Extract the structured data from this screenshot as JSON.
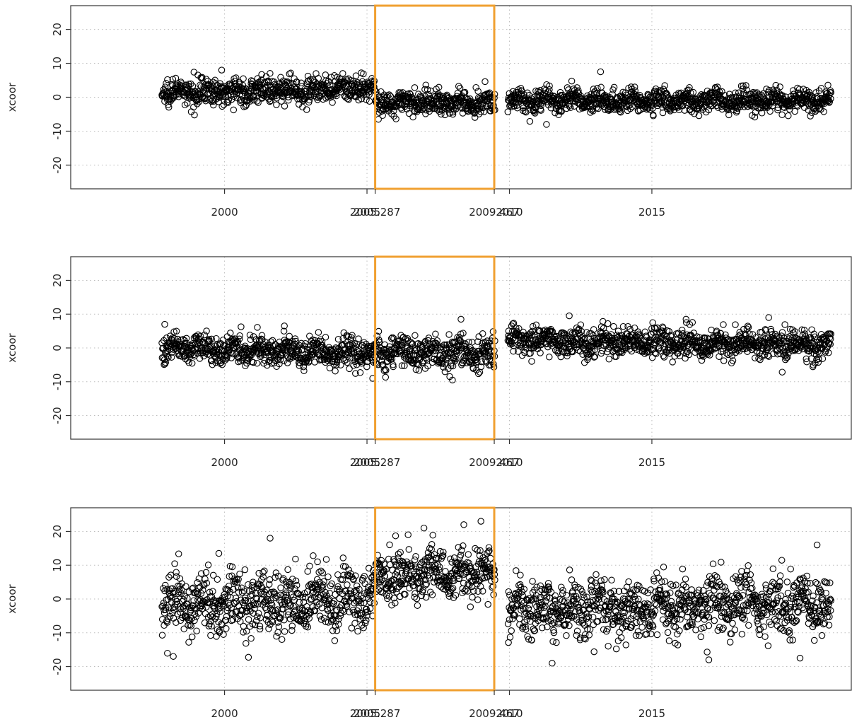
{
  "chart_data": [
    {
      "type": "scatter",
      "ylabel": "xcoor",
      "ylim": [
        -27,
        27
      ],
      "xlim": [
        1994.6,
        2022.0
      ],
      "y_ticks": [
        20,
        10,
        0,
        -10,
        -20
      ],
      "x_ticks": [
        2000,
        2005,
        2005.287,
        2009.467,
        2010,
        2015
      ],
      "x_tick_labels": [
        "2000",
        "2005",
        "2005.287",
        "2009.467",
        "2010",
        "2015"
      ],
      "grid": true,
      "highlight": {
        "x_start": 2005.287,
        "x_end": 2009.467,
        "color": "#f0a030"
      },
      "gap": [
        2009.55,
        2009.95
      ],
      "data_range": [
        1997.8,
        2021.3
      ],
      "segments": [
        {
          "x": [
            1997.8,
            2002.0,
            2005.28
          ],
          "mean": [
            1.5,
            2.0,
            2.5
          ],
          "spread": 2.5
        },
        {
          "x": [
            2005.3,
            2009.5
          ],
          "mean": [
            -1.5,
            -1.5
          ],
          "spread": 2.3
        },
        {
          "x": [
            2009.95,
            2021.3
          ],
          "mean": [
            -1.0,
            -1.0
          ],
          "spread": 2.3
        }
      ],
      "outliers": [
        [
          2011.3,
          -8.0
        ],
        [
          2013.2,
          7.5
        ],
        [
          1999.9,
          8.0
        ],
        [
          2004.8,
          7.2
        ],
        [
          2005.4,
          -6.5
        ]
      ]
    },
    {
      "type": "scatter",
      "ylabel": "xcoor",
      "ylim": [
        -27,
        27
      ],
      "xlim": [
        1994.6,
        2022.0
      ],
      "y_ticks": [
        20,
        10,
        0,
        -10,
        -20
      ],
      "x_ticks": [
        2000,
        2005,
        2005.287,
        2009.467,
        2010,
        2015
      ],
      "x_tick_labels": [
        "2000",
        "2005",
        "2005.287",
        "2009.467",
        "2010",
        "2015"
      ],
      "grid": true,
      "highlight": {
        "x_start": 2005.287,
        "x_end": 2009.467,
        "color": "#f0a030"
      },
      "gap": [
        2009.55,
        2009.95
      ],
      "data_range": [
        1997.8,
        2021.3
      ],
      "segments": [
        {
          "x": [
            1997.8,
            2001.5,
            2005.28
          ],
          "mean": [
            0.0,
            -0.5,
            -2.0
          ],
          "spread": 2.8
        },
        {
          "x": [
            2005.3,
            2009.5
          ],
          "mean": [
            -1.0,
            -1.5
          ],
          "spread": 3.0
        },
        {
          "x": [
            2009.95,
            2021.3
          ],
          "mean": [
            2.0,
            1.0
          ],
          "spread": 2.8
        }
      ],
      "outliers": [
        [
          1997.9,
          7.0
        ],
        [
          2002.1,
          6.5
        ],
        [
          2008.3,
          8.5
        ],
        [
          2008.0,
          -9.5
        ],
        [
          2012.1,
          9.5
        ],
        [
          2016.2,
          8.5
        ],
        [
          2019.1,
          9.0
        ],
        [
          2005.2,
          -9.0
        ]
      ]
    },
    {
      "type": "scatter",
      "ylabel": "xcoor",
      "ylim": [
        -27,
        27
      ],
      "xlim": [
        1994.6,
        2022.0
      ],
      "y_ticks": [
        20,
        10,
        0,
        -10,
        -20
      ],
      "x_ticks": [
        2000,
        2005,
        2005.287,
        2009.467,
        2010,
        2015
      ],
      "x_tick_labels": [
        "2000",
        "2005",
        "2005.287",
        "2009.467",
        "2010",
        "2015"
      ],
      "grid": true,
      "highlight": {
        "x_start": 2005.287,
        "x_end": 2009.467,
        "color": "#f0a030"
      },
      "gap": [
        2009.55,
        2009.95
      ],
      "data_range": [
        1997.8,
        2021.3
      ],
      "segments": [
        {
          "x": [
            1997.8,
            2001.5,
            2005.28
          ],
          "mean": [
            -2.0,
            -1.0,
            0.0
          ],
          "spread": 6.0
        },
        {
          "x": [
            2005.3,
            2009.5
          ],
          "mean": [
            7.0,
            7.5
          ],
          "spread": 5.0
        },
        {
          "x": [
            2009.95,
            2021.3
          ],
          "mean": [
            -3.5,
            -1.5
          ],
          "spread": 6.0
        }
      ],
      "outliers": [
        [
          1998.2,
          -17.0
        ],
        [
          1999.8,
          13.5
        ],
        [
          2001.6,
          18.0
        ],
        [
          2007.0,
          21.0
        ],
        [
          2008.4,
          22.0
        ],
        [
          2009.0,
          23.0
        ],
        [
          2011.5,
          -19.0
        ],
        [
          2020.2,
          -17.5
        ],
        [
          2020.8,
          16.0
        ],
        [
          2017.0,
          -18.0
        ]
      ]
    }
  ]
}
